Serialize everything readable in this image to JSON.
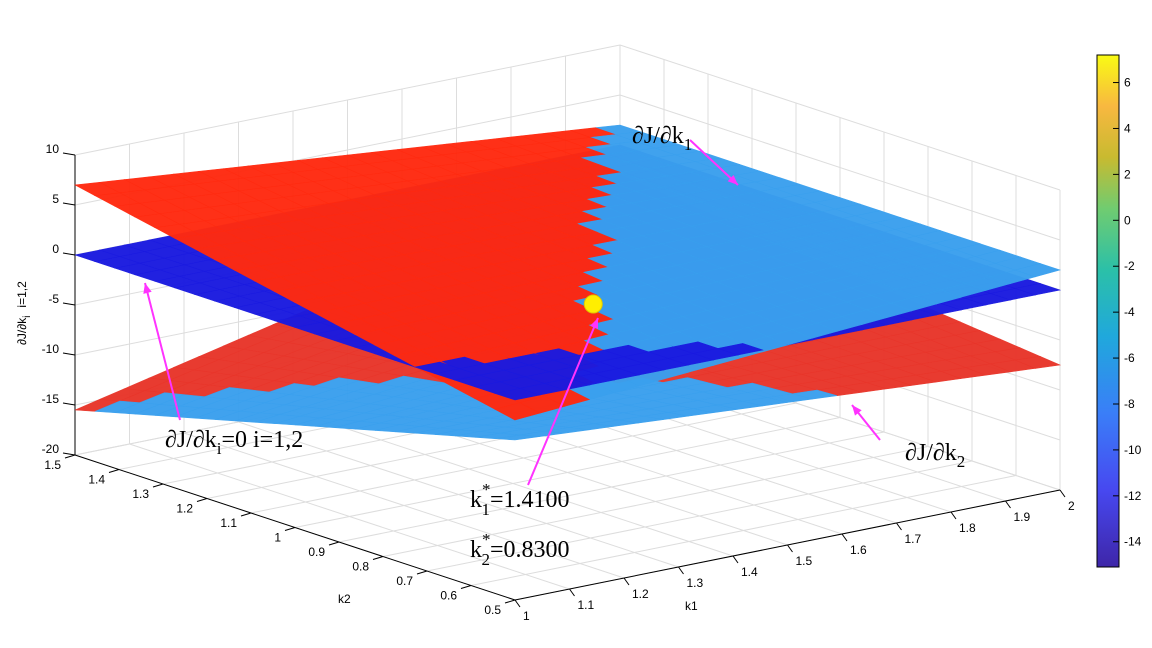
{
  "chart_data": {
    "type": "surface",
    "xlabel": "k1",
    "ylabel": "k2",
    "zlabel": "∂J/∂k",
    "zlabel_sub": "i",
    "zlabel_suffix": "i=1,2",
    "xlim": [
      1,
      2
    ],
    "ylim": [
      0.5,
      1.5
    ],
    "zlim": [
      -20,
      10
    ],
    "x_ticks": [
      "1",
      "1.1",
      "1.2",
      "1.3",
      "1.4",
      "1.5",
      "1.6",
      "1.7",
      "1.8",
      "1.9",
      "2"
    ],
    "y_ticks": [
      "0.5",
      "0.6",
      "0.7",
      "0.8",
      "0.9",
      "1",
      "1.1",
      "1.2",
      "1.3",
      "1.4",
      "1.5"
    ],
    "z_ticks": [
      "-20",
      "-15",
      "-10",
      "-5",
      "0",
      "5",
      "10"
    ],
    "grid": true,
    "colorbar": {
      "min": -15.1,
      "max": 7.2,
      "ticks": [
        "-14",
        "-12",
        "-10",
        "-8",
        "-6",
        "-4",
        "-2",
        "0",
        "2",
        "4",
        "6"
      ],
      "colormap": "parula"
    },
    "surfaces": [
      {
        "name": "∂J/∂k1",
        "corners": {
          "k1=1,k2=0.5": -2,
          "k1=2,k2=0.5": 2,
          "k1=1,k2=1.5": 7,
          "k1=2,k2=1.5": -1
        },
        "colors": [
          "#ff2a10",
          "#3aa0ee"
        ]
      },
      {
        "name": "∂J/∂k2",
        "corners": {
          "k1=1,k2=0.5": -4,
          "k1=2,k2=0.5": -7.5,
          "k1=1,k2=1.5": -15.5,
          "k1=2,k2=1.5": -3
        },
        "colors": [
          "#3aa0ee",
          "#e8352a"
        ]
      },
      {
        "name": "∂J/∂ki=0",
        "value": 0,
        "color": "#1a1ae0"
      }
    ],
    "optimum": {
      "k1": 1.41,
      "k2": 0.83,
      "z": 0,
      "color": "#ffee00"
    },
    "annotations": {
      "dJdk1": {
        "main": "∂J/∂k",
        "sub": "1"
      },
      "dJdk2": {
        "main": "∂J/∂k",
        "sub": "2"
      },
      "zero": {
        "main": "∂J/∂k",
        "sub": "i",
        "tail": "=0  i=1,2"
      },
      "k1star": {
        "main": "k",
        "sub": "1",
        "sup": "*",
        "tail": "=1.4100"
      },
      "k2star": {
        "main": "k",
        "sub": "2",
        "sup": "*",
        "tail": "=0.8300"
      },
      "arrow_color": "#ff33ff"
    }
  }
}
